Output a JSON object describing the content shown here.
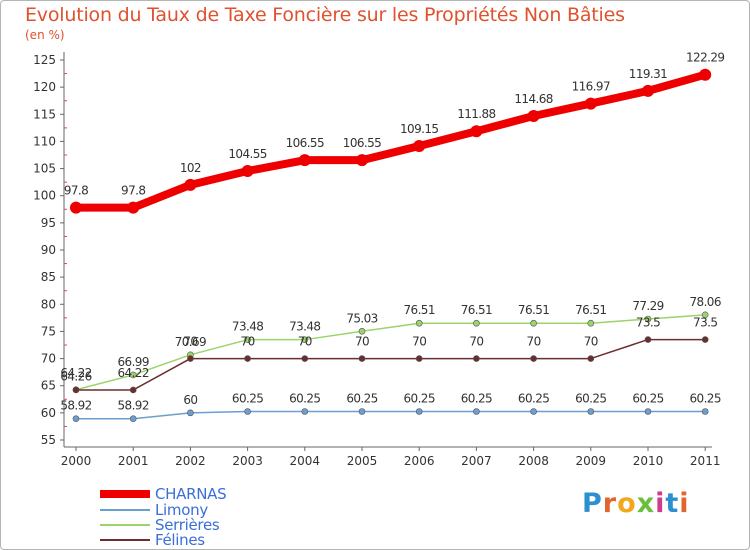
{
  "title": "Evolution du Taux de Taxe Foncière sur les Propriétés Non Bâties",
  "unit": "(en %)",
  "chart_data": {
    "type": "line",
    "title": "Evolution du Taux de Taxe Foncière sur les Propriétés Non Bâties",
    "ylabel": "(en %)",
    "xlabel": "",
    "ylim": [
      55,
      125
    ],
    "yticks": [
      "55",
      "60",
      "65",
      "70",
      "75",
      "80",
      "85",
      "90",
      "95",
      "100",
      "105",
      "110",
      "115",
      "120",
      "125"
    ],
    "categories": [
      "2000",
      "2001",
      "2002",
      "2003",
      "2004",
      "2005",
      "2006",
      "2007",
      "2008",
      "2009",
      "2010",
      "2011"
    ],
    "series": [
      {
        "name": "CHARNAS",
        "color": "#ee0000",
        "values": [
          97.8,
          97.8,
          102,
          104.55,
          106.55,
          106.55,
          109.15,
          111.88,
          114.68,
          116.97,
          119.31,
          122.29
        ],
        "labels": [
          "97.8",
          "97.8",
          "102",
          "104.55",
          "106.55",
          "106.55",
          "109.15",
          "111.88",
          "114.68",
          "116.97",
          "119.31",
          "122.29"
        ]
      },
      {
        "name": "Limony",
        "color": "#6a9fcf",
        "values": [
          58.92,
          58.92,
          60,
          60.25,
          60.25,
          60.25,
          60.25,
          60.25,
          60.25,
          60.25,
          60.25,
          60.25
        ],
        "labels": [
          "58.92",
          "58.92",
          "60",
          "60.25",
          "60.25",
          "60.25",
          "60.25",
          "60.25",
          "60.25",
          "60.25",
          "60.25",
          "60.25"
        ]
      },
      {
        "name": "Serrières",
        "color": "#9cd36a",
        "values": [
          64.26,
          66.99,
          70.69,
          73.48,
          73.48,
          75.03,
          76.51,
          76.51,
          76.51,
          76.51,
          77.29,
          78.06
        ],
        "labels": [
          "64.26",
          "66.99",
          "70.69",
          "73.48",
          "73.48",
          "75.03",
          "76.51",
          "76.51",
          "76.51",
          "76.51",
          "77.29",
          "78.06"
        ]
      },
      {
        "name": "Félines",
        "color": "#6b2d2d",
        "values": [
          64.22,
          64.22,
          70,
          70,
          70,
          70,
          70,
          70,
          70,
          70,
          73.5,
          73.5
        ],
        "labels": [
          "64.22",
          "64.22",
          "70",
          "70",
          "70",
          "70",
          "70",
          "70",
          "70",
          "70",
          "73.5",
          "73.5"
        ]
      }
    ]
  },
  "legend": [
    {
      "label": "CHARNAS",
      "color": "#ee0000"
    },
    {
      "label": "Limony",
      "color": "#6a9fcf"
    },
    {
      "label": "Serrières",
      "color": "#9cd36a"
    },
    {
      "label": "Félines",
      "color": "#6b2d2d"
    }
  ],
  "logo": {
    "text": "Proxiti"
  },
  "colors": {
    "title": "#e0522d",
    "axis": "#444444",
    "text": "#333333",
    "legend_text": "#3a6fd8"
  }
}
